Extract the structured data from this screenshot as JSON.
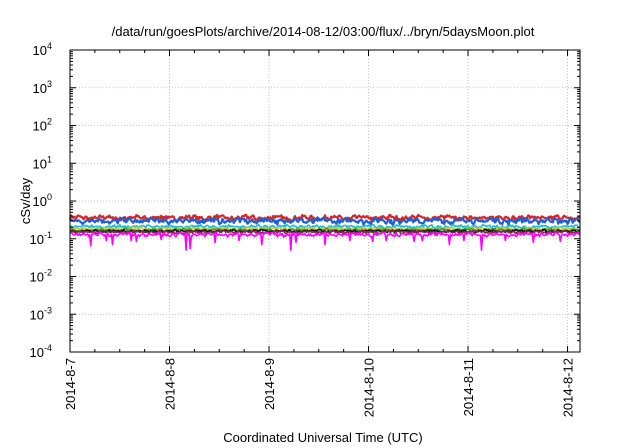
{
  "chart_data": {
    "type": "line",
    "title": "/data/run/goesPlots/archive/2014-08-12/03:00/flux/../bryn/5daysMoon.plot",
    "xlabel": "Coordinated Universal Time (UTC)",
    "ylabel": "cSv/day",
    "y_scale": "log",
    "ylim": [
      0.0001,
      10000
    ],
    "y_ticks": [
      {
        "base": "10",
        "exp": "4"
      },
      {
        "base": "10",
        "exp": "3"
      },
      {
        "base": "10",
        "exp": "2"
      },
      {
        "base": "10",
        "exp": "1"
      },
      {
        "base": "10",
        "exp": "0"
      },
      {
        "base": "10",
        "exp": "-1"
      },
      {
        "base": "10",
        "exp": "-2"
      },
      {
        "base": "10",
        "exp": "-3"
      },
      {
        "base": "10",
        "exp": "-4"
      }
    ],
    "x_ticks": [
      "2014-8-7",
      "2014-8-8",
      "2014-8-9",
      "2014-8-10",
      "2014-8-11",
      "2014-8-12"
    ],
    "xlim": [
      "2014-08-07 00:00",
      "2014-08-12 03:00"
    ],
    "grid": true,
    "x_step_hours": 1,
    "series": [
      {
        "color": "#d62728",
        "base": 0.36,
        "spread": 0.18,
        "spikes": []
      },
      {
        "color": "#1f5fd6",
        "base": 0.3,
        "spread": 0.2,
        "spikes": []
      },
      {
        "color": "#17becf",
        "base": 0.21,
        "spread": 0.12,
        "spikes": []
      },
      {
        "color": "#c8c832",
        "base": 0.185,
        "spread": 0.1,
        "spikes": []
      },
      {
        "color": "#2ca02c",
        "base": 0.17,
        "spread": 0.1,
        "spikes": []
      },
      {
        "color": "#111111",
        "base": 0.16,
        "spread": 0.1,
        "spikes": []
      },
      {
        "color": "#8b2252",
        "base": 0.15,
        "spread": 0.1,
        "spikes": []
      },
      {
        "color": "#ff00ff",
        "base": 0.13,
        "spread": 0.14,
        "spikes": [
          [
            20,
            0.065
          ],
          [
            35,
            0.09
          ],
          [
            41,
            0.07
          ],
          [
            59,
            0.09
          ],
          [
            64,
            0.085
          ],
          [
            88,
            0.095
          ],
          [
            112,
            0.05
          ],
          [
            116,
            0.055
          ],
          [
            140,
            0.08
          ],
          [
            163,
            0.09
          ],
          [
            185,
            0.07
          ],
          [
            213,
            0.05
          ],
          [
            218,
            0.08
          ],
          [
            246,
            0.07
          ],
          [
            270,
            0.09
          ],
          [
            292,
            0.085
          ],
          [
            305,
            0.09
          ],
          [
            332,
            0.085
          ],
          [
            340,
            0.09
          ],
          [
            366,
            0.07
          ],
          [
            380,
            0.09
          ],
          [
            397,
            0.05
          ],
          [
            420,
            0.09
          ],
          [
            447,
            0.08
          ],
          [
            473,
            0.085
          ],
          [
            494,
            0.085
          ]
        ]
      }
    ]
  }
}
